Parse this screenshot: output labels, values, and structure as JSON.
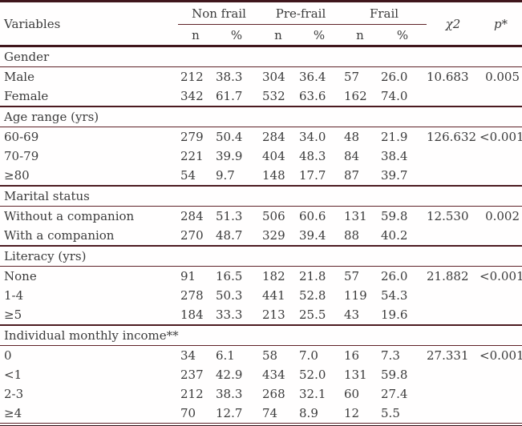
{
  "colors": {
    "rule_thin": "#5e2127",
    "rule_medium": "#4c1a20",
    "rule_thick": "#40161c",
    "text": "#3b3b3b",
    "background": "#fffefe"
  },
  "header": {
    "variables_label": "Variables",
    "groups": [
      "Non frail",
      "Pre-frail",
      "Frail"
    ],
    "subcols": [
      "n",
      "%",
      "n",
      "%",
      "n",
      "%"
    ],
    "chi_label": "χ2",
    "p_label": "p*"
  },
  "sections": [
    {
      "header": "Gender",
      "rows": [
        {
          "label": "Male",
          "cells": [
            "212",
            "38.3",
            "304",
            "36.4",
            "57",
            "26.0"
          ],
          "chi": "10.683",
          "p": "0.005"
        },
        {
          "label": "Female",
          "cells": [
            "342",
            "61.7",
            "532",
            "63.6",
            "162",
            "74.0"
          ],
          "chi": "",
          "p": ""
        }
      ]
    },
    {
      "header": "Age range (yrs)",
      "rows": [
        {
          "label": "60-69",
          "cells": [
            "279",
            "50.4",
            "284",
            "34.0",
            "48",
            "21.9"
          ],
          "chi": "126.632",
          "p": "<0.001"
        },
        {
          "label": "70-79",
          "cells": [
            "221",
            "39.9",
            "404",
            "48.3",
            "84",
            "38.4"
          ],
          "chi": "",
          "p": ""
        },
        {
          "label": "≥80",
          "cells": [
            "54",
            "9.7",
            "148",
            "17.7",
            "87",
            "39.7"
          ],
          "chi": "",
          "p": ""
        }
      ]
    },
    {
      "header": "Marital status",
      "rows": [
        {
          "label": "Without a companion",
          "cells": [
            "284",
            "51.3",
            "506",
            "60.6",
            "131",
            "59.8"
          ],
          "chi": "12.530",
          "p": "0.002"
        },
        {
          "label": "With a companion",
          "cells": [
            "270",
            "48.7",
            "329",
            "39.4",
            "88",
            "40.2"
          ],
          "chi": "",
          "p": ""
        }
      ]
    },
    {
      "header": "Literacy (yrs)",
      "rows": [
        {
          "label": "None",
          "cells": [
            "91",
            "16.5",
            "182",
            "21.8",
            "57",
            "26.0"
          ],
          "chi": "21.882",
          "p": "<0.001"
        },
        {
          "label": "1-4",
          "cells": [
            "278",
            "50.3",
            "441",
            "52.8",
            "119",
            "54.3"
          ],
          "chi": "",
          "p": ""
        },
        {
          "label": "≥5",
          "cells": [
            "184",
            "33.3",
            "213",
            "25.5",
            "43",
            "19.6"
          ],
          "chi": "",
          "p": ""
        }
      ]
    },
    {
      "header": "Individual monthly income**",
      "rows": [
        {
          "label": "0",
          "cells": [
            "34",
            "6.1",
            "58",
            "7.0",
            "16",
            "7.3"
          ],
          "chi": "27.331",
          "p": "<0.001"
        },
        {
          "label": "<1",
          "cells": [
            "237",
            "42.9",
            "434",
            "52.0",
            "131",
            "59.8"
          ],
          "chi": "",
          "p": ""
        },
        {
          "label": "2-3",
          "cells": [
            "212",
            "38.3",
            "268",
            "32.1",
            "60",
            "27.4"
          ],
          "chi": "",
          "p": ""
        },
        {
          "label": "≥4",
          "cells": [
            "70",
            "12.7",
            "74",
            "8.9",
            "12",
            "5.5"
          ],
          "chi": "",
          "p": ""
        }
      ]
    }
  ]
}
